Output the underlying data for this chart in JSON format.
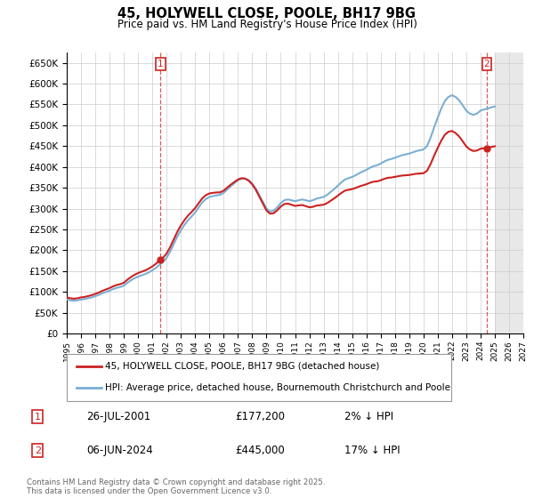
{
  "title": "45, HOLYWELL CLOSE, POOLE, BH17 9BG",
  "subtitle": "Price paid vs. HM Land Registry's House Price Index (HPI)",
  "ylim": [
    0,
    675000
  ],
  "yticks": [
    0,
    50000,
    100000,
    150000,
    200000,
    250000,
    300000,
    350000,
    400000,
    450000,
    500000,
    550000,
    600000,
    650000
  ],
  "x_start_year": 1995,
  "x_end_year": 2027,
  "hpi_color": "#7bafd4",
  "price_color": "#cc2222",
  "dashed_color": "#cc2222",
  "bg_color": "#ffffff",
  "grid_color": "#cccccc",
  "legend_label_price": "45, HOLYWELL CLOSE, POOLE, BH17 9BG (detached house)",
  "legend_label_hpi": "HPI: Average price, detached house, Bournemouth Christchurch and Poole",
  "sale1_date": "26-JUL-2001",
  "sale1_price": 177200,
  "sale1_label": "2% ↓ HPI",
  "sale1_year": 2001.57,
  "sale2_date": "06-JUN-2024",
  "sale2_price": 445000,
  "sale2_label": "17% ↓ HPI",
  "sale2_year": 2024.43,
  "footer": "Contains HM Land Registry data © Crown copyright and database right 2025.\nThis data is licensed under the Open Government Licence v3.0.",
  "hpi_data": {
    "years": [
      1995.0,
      1995.25,
      1995.5,
      1995.75,
      1996.0,
      1996.25,
      1996.5,
      1996.75,
      1997.0,
      1997.25,
      1997.5,
      1997.75,
      1998.0,
      1998.25,
      1998.5,
      1998.75,
      1999.0,
      1999.25,
      1999.5,
      1999.75,
      2000.0,
      2000.25,
      2000.5,
      2000.75,
      2001.0,
      2001.25,
      2001.5,
      2001.75,
      2002.0,
      2002.25,
      2002.5,
      2002.75,
      2003.0,
      2003.25,
      2003.5,
      2003.75,
      2004.0,
      2004.25,
      2004.5,
      2004.75,
      2005.0,
      2005.25,
      2005.5,
      2005.75,
      2006.0,
      2006.25,
      2006.5,
      2006.75,
      2007.0,
      2007.25,
      2007.5,
      2007.75,
      2008.0,
      2008.25,
      2008.5,
      2008.75,
      2009.0,
      2009.25,
      2009.5,
      2009.75,
      2010.0,
      2010.25,
      2010.5,
      2010.75,
      2011.0,
      2011.25,
      2011.5,
      2011.75,
      2012.0,
      2012.25,
      2012.5,
      2012.75,
      2013.0,
      2013.25,
      2013.5,
      2013.75,
      2014.0,
      2014.25,
      2014.5,
      2014.75,
      2015.0,
      2015.25,
      2015.5,
      2015.75,
      2016.0,
      2016.25,
      2016.5,
      2016.75,
      2017.0,
      2017.25,
      2017.5,
      2017.75,
      2018.0,
      2018.25,
      2018.5,
      2018.75,
      2019.0,
      2019.25,
      2019.5,
      2019.75,
      2020.0,
      2020.25,
      2020.5,
      2020.75,
      2021.0,
      2021.25,
      2021.5,
      2021.75,
      2022.0,
      2022.25,
      2022.5,
      2022.75,
      2023.0,
      2023.25,
      2023.5,
      2023.75,
      2024.0,
      2024.25,
      2024.5,
      2024.75,
      2025.0
    ],
    "values": [
      82000,
      80000,
      79000,
      80000,
      82000,
      83000,
      85000,
      87000,
      90000,
      93000,
      97000,
      100000,
      103000,
      107000,
      110000,
      112000,
      115000,
      122000,
      128000,
      133000,
      137000,
      140000,
      143000,
      147000,
      152000,
      158000,
      165000,
      172000,
      182000,
      197000,
      215000,
      233000,
      248000,
      261000,
      272000,
      281000,
      291000,
      303000,
      315000,
      323000,
      328000,
      330000,
      332000,
      333000,
      338000,
      346000,
      354000,
      361000,
      368000,
      372000,
      372000,
      368000,
      360000,
      348000,
      332000,
      316000,
      300000,
      293000,
      295000,
      303000,
      313000,
      320000,
      322000,
      320000,
      318000,
      320000,
      322000,
      320000,
      318000,
      320000,
      324000,
      326000,
      328000,
      333000,
      340000,
      347000,
      355000,
      363000,
      370000,
      373000,
      376000,
      380000,
      385000,
      389000,
      393000,
      398000,
      402000,
      404000,
      408000,
      413000,
      417000,
      419000,
      422000,
      425000,
      428000,
      430000,
      432000,
      435000,
      438000,
      440000,
      442000,
      450000,
      470000,
      495000,
      518000,
      540000,
      558000,
      568000,
      572000,
      568000,
      560000,
      548000,
      535000,
      528000,
      525000,
      528000,
      535000,
      538000,
      540000,
      543000,
      545000
    ]
  }
}
